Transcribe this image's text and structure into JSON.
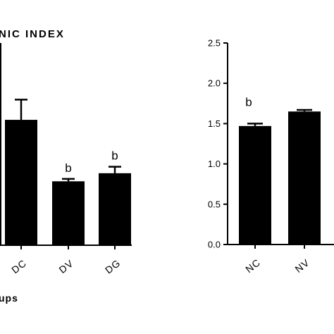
{
  "chart_data": [
    {
      "type": "bar",
      "title": "NIC INDEX",
      "xlabel": "ups",
      "ylabel": "",
      "categories": [
        "DC",
        "DV",
        "DG"
      ],
      "values": [
        1.55,
        0.79,
        0.89
      ],
      "error": [
        0.25,
        0.03,
        0.08
      ],
      "annotations": [
        "",
        "b",
        "b"
      ],
      "ylim": [
        0,
        2.5
      ]
    },
    {
      "type": "bar",
      "title": "",
      "xlabel": "",
      "ylabel": "",
      "categories": [
        "NC",
        "NV"
      ],
      "values": [
        1.47,
        1.65
      ],
      "error": [
        0.03,
        0.02
      ],
      "annotations": [
        "b",
        ""
      ],
      "ylim": [
        0,
        2.5
      ],
      "yticks": [
        "0.0",
        "0.5",
        "1.0",
        "1.5",
        "2.0",
        "2.5"
      ]
    }
  ]
}
